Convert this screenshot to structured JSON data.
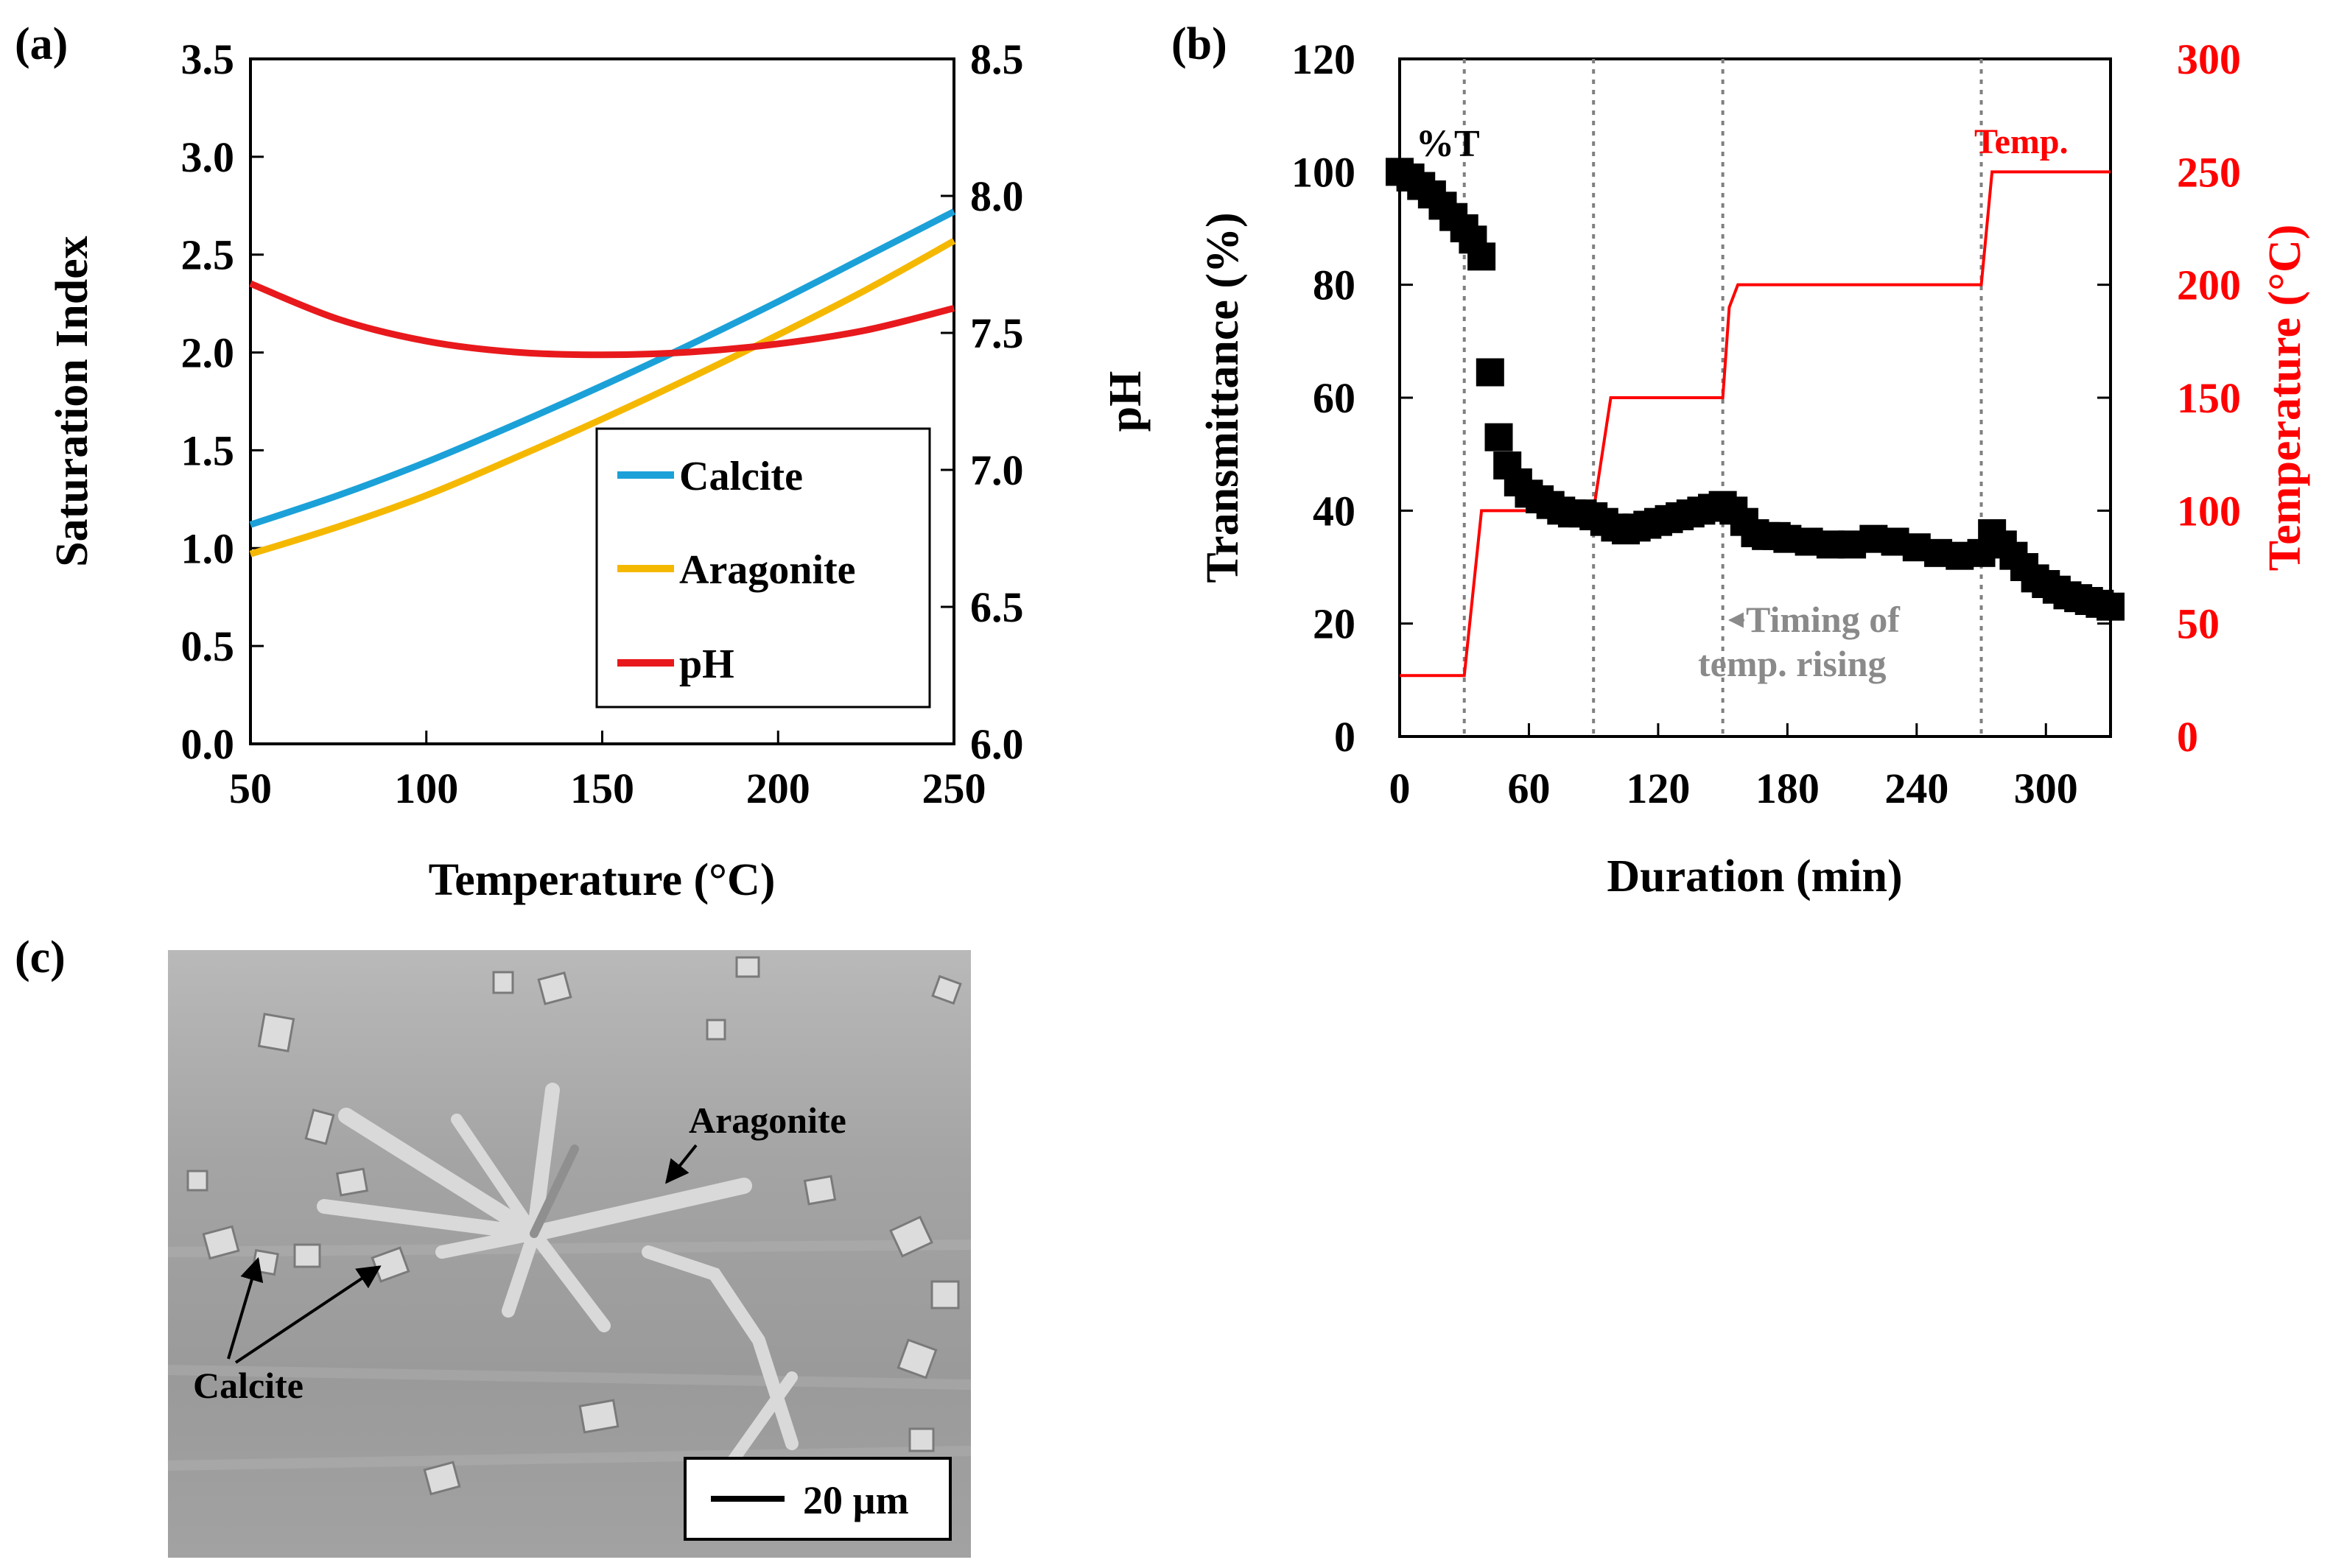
{
  "panels": {
    "a": {
      "label": "(a)"
    },
    "b": {
      "label": "(b)"
    },
    "c": {
      "label": "(c)"
    }
  },
  "chart_data": [
    {
      "panel": "a",
      "type": "line",
      "xlabel": "Temperature (°C)",
      "ylabel": "Saturation Index",
      "y2label": "pH",
      "xlim": [
        50,
        250
      ],
      "ylim": [
        0,
        3.5
      ],
      "y2lim": [
        6.0,
        8.5
      ],
      "xticks": [
        "50",
        "100",
        "150",
        "200",
        "250"
      ],
      "yticks": [
        "0.0",
        "0.5",
        "1.0",
        "1.5",
        "2.0",
        "2.5",
        "3.0",
        "3.5"
      ],
      "y2ticks": [
        "6.0",
        "6.5",
        "7.0",
        "7.5",
        "8.0",
        "8.5"
      ],
      "legend": "bottom-right",
      "x": [
        50,
        75,
        100,
        125,
        150,
        175,
        200,
        225,
        250
      ],
      "series": [
        {
          "name": "Calcite",
          "axis": "left",
          "color": "#1BA1D8",
          "values": [
            1.12,
            1.27,
            1.44,
            1.63,
            1.83,
            2.04,
            2.26,
            2.49,
            2.72
          ]
        },
        {
          "name": "Aragonite",
          "axis": "left",
          "color": "#F5B800",
          "values": [
            0.97,
            1.11,
            1.27,
            1.46,
            1.66,
            1.87,
            2.09,
            2.32,
            2.57
          ]
        },
        {
          "name": "pH",
          "axis": "right",
          "color": "#E8191C",
          "values": [
            7.68,
            7.55,
            7.47,
            7.43,
            7.42,
            7.43,
            7.46,
            7.51,
            7.59
          ]
        }
      ]
    },
    {
      "panel": "b",
      "type": "scatter",
      "xlabel": "Duration (min)",
      "ylabel": "Transmittance (%)",
      "y2label": "Temperature (°C)",
      "xlim": [
        0,
        330
      ],
      "ylim": [
        0,
        120
      ],
      "y2lim": [
        0,
        300
      ],
      "xticks": [
        "0",
        "60",
        "120",
        "180",
        "240",
        "300"
      ],
      "yticks": [
        "0",
        "20",
        "40",
        "60",
        "80",
        "100",
        "120"
      ],
      "y2ticks": [
        "0",
        "50",
        "100",
        "150",
        "200",
        "250",
        "300"
      ],
      "temp_rise_times": [
        30,
        90,
        150,
        270
      ],
      "annotations": {
        "transmittance": "%T",
        "temperature": "Temp.",
        "arrow_note": "←Timing of temp. rising"
      },
      "series": [
        {
          "name": "%T",
          "axis": "left",
          "color": "#000000",
          "marker": "square",
          "x": [
            0,
            5,
            10,
            15,
            20,
            25,
            30,
            34,
            38,
            42,
            46,
            50,
            55,
            60,
            65,
            70,
            75,
            80,
            85,
            90,
            95,
            100,
            105,
            110,
            115,
            120,
            125,
            130,
            135,
            140,
            145,
            150,
            155,
            160,
            165,
            170,
            175,
            180,
            190,
            200,
            210,
            220,
            230,
            240,
            250,
            260,
            270,
            275,
            280,
            285,
            290,
            295,
            300,
            305,
            310,
            315,
            320,
            325,
            330
          ],
          "y": [
            100,
            99,
            97.5,
            96,
            94,
            92,
            90,
            88,
            85,
            64.5,
            53,
            48,
            45,
            43,
            42,
            41,
            40,
            39.5,
            39.5,
            39,
            38,
            37,
            36.5,
            37,
            37.5,
            38,
            38.5,
            39,
            39.5,
            40,
            40.5,
            41,
            40,
            38,
            36,
            35.5,
            35.5,
            35,
            34.5,
            34,
            34,
            35,
            34.5,
            33.5,
            32.5,
            32,
            32.5,
            36,
            34,
            32,
            30,
            28,
            27,
            26,
            25,
            24.5,
            24,
            23.5,
            23
          ]
        },
        {
          "name": "Temp.",
          "axis": "right",
          "color": "#FF0000",
          "marker": "line",
          "x": [
            0,
            30,
            38,
            90,
            98,
            150,
            153,
            157,
            270,
            275,
            330
          ],
          "y": [
            27,
            27,
            100,
            100,
            150,
            150,
            190,
            200,
            200,
            250,
            250
          ]
        }
      ]
    }
  ],
  "sem": {
    "labels": {
      "aragonite": "Aragonite",
      "calcite": "Calcite"
    },
    "scale_bar": "20 µm"
  }
}
